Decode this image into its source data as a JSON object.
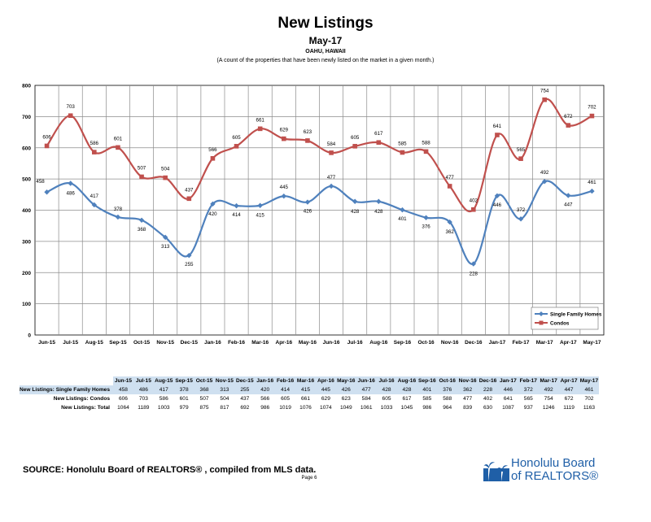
{
  "header": {
    "title": "New Listings",
    "subtitle": "May-17",
    "location": "OAHU, HAWAII",
    "note": "(A count of the properties that have been newly listed on the market in a given month.)"
  },
  "chart_data": {
    "type": "line",
    "categories": [
      "Jun-15",
      "Jul-15",
      "Aug-15",
      "Sep-15",
      "Oct-15",
      "Nov-15",
      "Dec-15",
      "Jan-16",
      "Feb-16",
      "Mar-16",
      "Apr-16",
      "May-16",
      "Jun-16",
      "Jul-16",
      "Aug-16",
      "Sep-16",
      "Oct-16",
      "Nov-16",
      "Dec-16",
      "Jan-17",
      "Feb-17",
      "Mar-17",
      "Apr-17",
      "May-17"
    ],
    "series": [
      {
        "name": "Single Family Homes",
        "color": "#4f81bd",
        "marker": "diamond",
        "values": [
          458,
          486,
          417,
          378,
          368,
          313,
          255,
          420,
          414,
          415,
          445,
          426,
          477,
          428,
          428,
          401,
          376,
          362,
          228,
          446,
          372,
          492,
          447,
          461
        ]
      },
      {
        "name": "Condos",
        "color": "#c0504d",
        "marker": "square",
        "values": [
          606,
          703,
          586,
          601,
          507,
          504,
          437,
          566,
          605,
          661,
          629,
          623,
          584,
          605,
          617,
          585,
          588,
          477,
          402,
          641,
          565,
          754,
          672,
          702
        ]
      }
    ],
    "ylim": [
      0,
      800
    ],
    "yticks": [
      "0",
      "100",
      "200",
      "300",
      "400",
      "500",
      "600",
      "700",
      "800"
    ],
    "grid": true,
    "legend": "bottom-right",
    "title": "",
    "xlabel": "",
    "ylabel": ""
  },
  "table": {
    "months": [
      "Jun-15",
      "Jul-15",
      "Aug-15",
      "Sep-15",
      "Oct-15",
      "Nov-15",
      "Dec-15",
      "Jan-16",
      "Feb-16",
      "Mar-16",
      "Apr-16",
      "May-16",
      "Jun-16",
      "Jul-16",
      "Aug-16",
      "Sep-16",
      "Oct-16",
      "Nov-16",
      "Dec-16",
      "Jan-17",
      "Feb-17",
      "Mar-17",
      "Apr-17",
      "May-17"
    ],
    "rows": [
      {
        "label": "New Listings: Single Family Homes",
        "values": [
          "458",
          "486",
          "417",
          "378",
          "368",
          "313",
          "255",
          "420",
          "414",
          "415",
          "445",
          "426",
          "477",
          "428",
          "428",
          "401",
          "376",
          "362",
          "228",
          "446",
          "372",
          "492",
          "447",
          "461"
        ]
      },
      {
        "label": "New Listings: Condos",
        "values": [
          "606",
          "703",
          "586",
          "601",
          "507",
          "504",
          "437",
          "566",
          "605",
          "661",
          "629",
          "623",
          "584",
          "605",
          "617",
          "585",
          "588",
          "477",
          "402",
          "641",
          "565",
          "754",
          "672",
          "702"
        ]
      },
      {
        "label": "New Listings: Total",
        "values": [
          "1064",
          "1189",
          "1003",
          "979",
          "875",
          "817",
          "692",
          "986",
          "1019",
          "1076",
          "1074",
          "1049",
          "1061",
          "1033",
          "1045",
          "986",
          "964",
          "839",
          "630",
          "1087",
          "937",
          "1246",
          "1119",
          "1163"
        ]
      }
    ]
  },
  "footer": {
    "source": "SOURCE:  Honolulu Board of REALTORS® , compiled from MLS data.",
    "page": "Page 6",
    "logo_line1": "Honolulu Board",
    "logo_line2": "of REALTORS®"
  }
}
